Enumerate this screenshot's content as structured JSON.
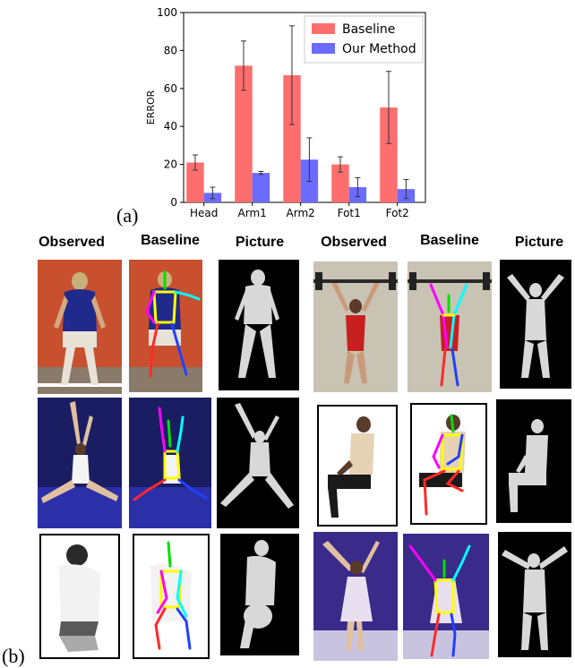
{
  "figure_labels": {
    "a": "(a)",
    "b": "(b)"
  },
  "chart_data": {
    "type": "bar",
    "categories": [
      "Head",
      "Arm1",
      "Arm2",
      "Fot1",
      "Fot2"
    ],
    "series": [
      {
        "name": "Baseline",
        "values": [
          21,
          72,
          67,
          20,
          50
        ],
        "errors": [
          4,
          13,
          26,
          4,
          19
        ],
        "color": "#ff6e6e"
      },
      {
        "name": "Our Method",
        "values": [
          5,
          15.5,
          22.5,
          8,
          7
        ],
        "errors": [
          3,
          0.8,
          11.5,
          5,
          5
        ],
        "color": "#6b6bff"
      }
    ],
    "xlabel": "",
    "ylabel": "ERROR",
    "ylim": [
      0,
      100
    ],
    "yticks": [
      0,
      20,
      40,
      60,
      80,
      100
    ],
    "legend_position": "top-right",
    "grid": false
  },
  "column_headers": {
    "observed": "Observed",
    "baseline": "Baseline",
    "picture": "Picture"
  },
  "colors": {
    "football_bg": "#c8502f",
    "dancer_bg": "#1b1d63",
    "weightlift_bg": "#c9c3b4",
    "skater_bg": "#3a2a8a",
    "depth_bg": "#000000",
    "skeleton": [
      "#00e000",
      "#ffff00",
      "#ff00ff",
      "#00ffff",
      "#ff2a2a",
      "#2040ff"
    ]
  }
}
